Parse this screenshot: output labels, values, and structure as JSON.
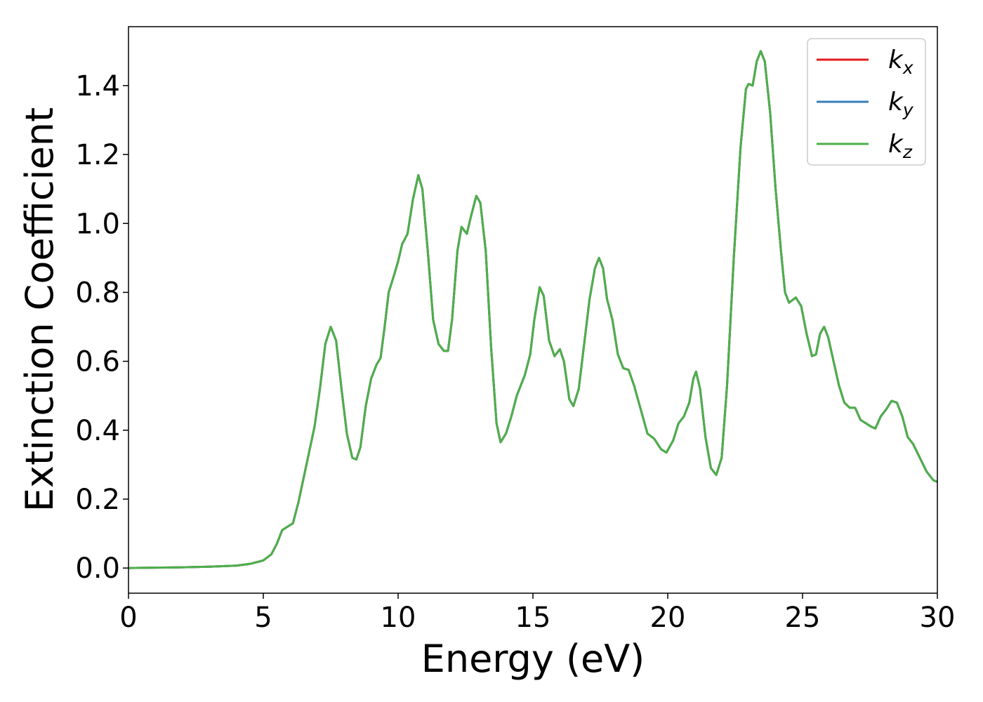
{
  "chart_data": {
    "type": "line",
    "x_label": "Energy (eV)",
    "y_label": "Extinction Coefficient",
    "xlim": [
      0,
      30
    ],
    "ylim": [
      -0.073,
      1.571
    ],
    "xticks": [
      0,
      5,
      10,
      15,
      20,
      25,
      30
    ],
    "yticks": [
      {
        "value": 0,
        "label": "0.0"
      },
      0.2,
      0.4,
      0.6,
      0.8,
      {
        "value": 1,
        "label": "1.0"
      },
      1.2,
      1.4
    ],
    "grid": false,
    "legend": "upper right",
    "x": [
      0,
      1,
      2,
      3,
      4,
      4.5,
      5,
      5.3,
      5.5,
      5.7,
      5.9,
      6.1,
      6.3,
      6.6,
      6.9,
      7.1,
      7.3,
      7.5,
      7.7,
      7.9,
      8.1,
      8.3,
      8.45,
      8.6,
      8.8,
      9.0,
      9.2,
      9.35,
      9.5,
      9.65,
      9.85,
      10.0,
      10.15,
      10.35,
      10.55,
      10.75,
      10.9,
      11.1,
      11.3,
      11.5,
      11.7,
      11.85,
      12.0,
      12.2,
      12.35,
      12.55,
      12.7,
      12.9,
      13.05,
      13.25,
      13.45,
      13.65,
      13.8,
      14.0,
      14.2,
      14.4,
      14.7,
      14.9,
      15.05,
      15.25,
      15.4,
      15.6,
      15.8,
      16.0,
      16.15,
      16.35,
      16.5,
      16.7,
      16.9,
      17.1,
      17.3,
      17.45,
      17.6,
      17.75,
      17.95,
      18.15,
      18.35,
      18.55,
      18.75,
      19.0,
      19.25,
      19.5,
      19.75,
      19.95,
      20.2,
      20.4,
      20.6,
      20.8,
      20.95,
      21.05,
      21.2,
      21.4,
      21.6,
      21.8,
      22.0,
      22.2,
      22.45,
      22.7,
      22.9,
      23.0,
      23.15,
      23.3,
      23.45,
      23.6,
      23.8,
      24.0,
      24.2,
      24.35,
      24.5,
      24.75,
      24.95,
      25.15,
      25.35,
      25.5,
      25.65,
      25.8,
      25.95,
      26.15,
      26.35,
      26.55,
      26.75,
      26.95,
      27.15,
      27.35,
      27.55,
      27.7,
      27.9,
      28.1,
      28.3,
      28.5,
      28.7,
      28.9,
      29.1,
      29.35,
      29.6,
      29.85,
      30
    ],
    "series": [
      {
        "name": "k_x",
        "color": "#e41a1c",
        "values": [
          0,
          0.001,
          0.002,
          0.004,
          0.007,
          0.012,
          0.022,
          0.04,
          0.07,
          0.11,
          0.12,
          0.13,
          0.19,
          0.3,
          0.41,
          0.52,
          0.65,
          0.7,
          0.66,
          0.52,
          0.39,
          0.32,
          0.315,
          0.35,
          0.47,
          0.55,
          0.59,
          0.61,
          0.7,
          0.8,
          0.85,
          0.89,
          0.94,
          0.97,
          1.07,
          1.14,
          1.1,
          0.92,
          0.72,
          0.65,
          0.63,
          0.63,
          0.72,
          0.92,
          0.99,
          0.97,
          1.02,
          1.08,
          1.06,
          0.92,
          0.64,
          0.42,
          0.365,
          0.39,
          0.44,
          0.5,
          0.56,
          0.62,
          0.72,
          0.815,
          0.79,
          0.66,
          0.615,
          0.635,
          0.6,
          0.49,
          0.47,
          0.52,
          0.65,
          0.78,
          0.87,
          0.9,
          0.87,
          0.78,
          0.72,
          0.62,
          0.58,
          0.575,
          0.53,
          0.46,
          0.39,
          0.375,
          0.345,
          0.335,
          0.37,
          0.42,
          0.44,
          0.48,
          0.55,
          0.57,
          0.52,
          0.38,
          0.29,
          0.27,
          0.32,
          0.53,
          0.9,
          1.22,
          1.39,
          1.405,
          1.4,
          1.47,
          1.5,
          1.47,
          1.32,
          1.1,
          0.92,
          0.8,
          0.77,
          0.785,
          0.76,
          0.68,
          0.615,
          0.62,
          0.68,
          0.7,
          0.67,
          0.6,
          0.53,
          0.48,
          0.465,
          0.465,
          0.43,
          0.42,
          0.41,
          0.405,
          0.44,
          0.46,
          0.485,
          0.48,
          0.44,
          0.38,
          0.36,
          0.32,
          0.28,
          0.255,
          0.25
        ]
      },
      {
        "name": "k_y",
        "color": "#377eb8",
        "values": [
          0,
          0.001,
          0.002,
          0.004,
          0.007,
          0.012,
          0.022,
          0.04,
          0.07,
          0.11,
          0.12,
          0.13,
          0.19,
          0.3,
          0.41,
          0.52,
          0.65,
          0.7,
          0.66,
          0.52,
          0.39,
          0.32,
          0.315,
          0.35,
          0.47,
          0.55,
          0.59,
          0.61,
          0.7,
          0.8,
          0.85,
          0.89,
          0.94,
          0.97,
          1.07,
          1.14,
          1.1,
          0.92,
          0.72,
          0.65,
          0.63,
          0.63,
          0.72,
          0.92,
          0.99,
          0.97,
          1.02,
          1.08,
          1.06,
          0.92,
          0.64,
          0.42,
          0.365,
          0.39,
          0.44,
          0.5,
          0.56,
          0.62,
          0.72,
          0.815,
          0.79,
          0.66,
          0.615,
          0.635,
          0.6,
          0.49,
          0.47,
          0.52,
          0.65,
          0.78,
          0.87,
          0.9,
          0.87,
          0.78,
          0.72,
          0.62,
          0.58,
          0.575,
          0.53,
          0.46,
          0.39,
          0.375,
          0.345,
          0.335,
          0.37,
          0.42,
          0.44,
          0.48,
          0.55,
          0.57,
          0.52,
          0.38,
          0.29,
          0.27,
          0.32,
          0.53,
          0.9,
          1.22,
          1.39,
          1.405,
          1.4,
          1.47,
          1.5,
          1.47,
          1.32,
          1.1,
          0.92,
          0.8,
          0.77,
          0.785,
          0.76,
          0.68,
          0.615,
          0.62,
          0.68,
          0.7,
          0.67,
          0.6,
          0.53,
          0.48,
          0.465,
          0.465,
          0.43,
          0.42,
          0.41,
          0.405,
          0.44,
          0.46,
          0.485,
          0.48,
          0.44,
          0.38,
          0.36,
          0.32,
          0.28,
          0.255,
          0.25
        ]
      },
      {
        "name": "k_z",
        "color": "#4daf4a",
        "values": [
          0,
          0.001,
          0.002,
          0.004,
          0.007,
          0.012,
          0.022,
          0.04,
          0.07,
          0.11,
          0.12,
          0.13,
          0.19,
          0.3,
          0.41,
          0.52,
          0.65,
          0.7,
          0.66,
          0.52,
          0.39,
          0.32,
          0.315,
          0.35,
          0.47,
          0.55,
          0.59,
          0.61,
          0.7,
          0.8,
          0.85,
          0.89,
          0.94,
          0.97,
          1.07,
          1.14,
          1.1,
          0.92,
          0.72,
          0.65,
          0.63,
          0.63,
          0.72,
          0.92,
          0.99,
          0.97,
          1.02,
          1.08,
          1.06,
          0.92,
          0.64,
          0.42,
          0.365,
          0.39,
          0.44,
          0.5,
          0.56,
          0.62,
          0.72,
          0.815,
          0.79,
          0.66,
          0.615,
          0.635,
          0.6,
          0.49,
          0.47,
          0.52,
          0.65,
          0.78,
          0.87,
          0.9,
          0.87,
          0.78,
          0.72,
          0.62,
          0.58,
          0.575,
          0.53,
          0.46,
          0.39,
          0.375,
          0.345,
          0.335,
          0.37,
          0.42,
          0.44,
          0.48,
          0.55,
          0.57,
          0.52,
          0.38,
          0.29,
          0.27,
          0.32,
          0.53,
          0.9,
          1.22,
          1.39,
          1.405,
          1.4,
          1.47,
          1.5,
          1.47,
          1.32,
          1.1,
          0.92,
          0.8,
          0.77,
          0.785,
          0.76,
          0.68,
          0.615,
          0.62,
          0.68,
          0.7,
          0.67,
          0.6,
          0.53,
          0.48,
          0.465,
          0.465,
          0.43,
          0.42,
          0.41,
          0.405,
          0.44,
          0.46,
          0.485,
          0.48,
          0.44,
          0.38,
          0.36,
          0.32,
          0.28,
          0.255,
          0.25
        ]
      }
    ]
  }
}
